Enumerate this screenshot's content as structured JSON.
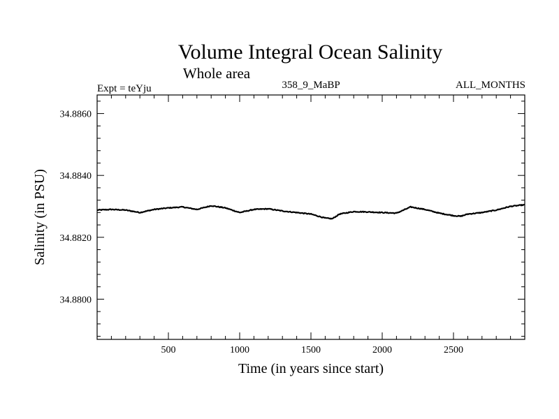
{
  "chart_data": {
    "type": "line",
    "title": "Volume Integral Ocean Salinity",
    "subtitle": "Whole area",
    "experiment_label": "Expt = teYju",
    "run_label": "358_9_MaBP",
    "period_label": "ALL_MONTHS",
    "xlabel": "Time (in years since start)",
    "ylabel": "Salinity (in PSU)",
    "xlim": [
      0,
      3000
    ],
    "ylim": [
      34.8787,
      34.8866
    ],
    "x_ticks": [
      500,
      1000,
      1500,
      2000,
      2500
    ],
    "x_tick_labels": [
      "500",
      "1000",
      "1500",
      "2000",
      "2500"
    ],
    "y_ticks": [
      34.886,
      34.884,
      34.882,
      34.88
    ],
    "y_tick_labels": [
      "34.8860",
      "34.8840",
      "34.8820",
      "34.8800"
    ],
    "grid": false,
    "series": [
      {
        "name": "Salinity",
        "x": [
          0,
          100,
          200,
          300,
          400,
          500,
          600,
          700,
          800,
          900,
          1000,
          1100,
          1200,
          1300,
          1400,
          1500,
          1600,
          1650,
          1700,
          1800,
          1900,
          2000,
          2100,
          2200,
          2300,
          2400,
          2500,
          2550,
          2600,
          2700,
          2800,
          2900,
          3000
        ],
        "values": [
          34.88288,
          34.8829,
          34.88288,
          34.8828,
          34.8829,
          34.88295,
          34.88298,
          34.8829,
          34.88302,
          34.88295,
          34.8828,
          34.8829,
          34.88292,
          34.88285,
          34.8828,
          34.88275,
          34.88262,
          34.8826,
          34.88275,
          34.88283,
          34.88282,
          34.8828,
          34.88278,
          34.88298,
          34.8829,
          34.88278,
          34.8827,
          34.88268,
          34.88275,
          34.8828,
          34.88288,
          34.883,
          34.88305
        ]
      }
    ]
  }
}
